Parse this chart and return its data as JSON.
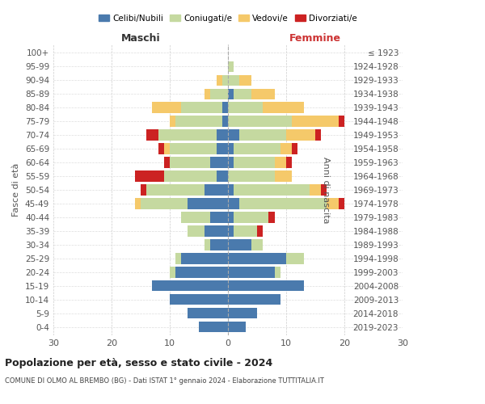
{
  "age_groups": [
    "0-4",
    "5-9",
    "10-14",
    "15-19",
    "20-24",
    "25-29",
    "30-34",
    "35-39",
    "40-44",
    "45-49",
    "50-54",
    "55-59",
    "60-64",
    "65-69",
    "70-74",
    "75-79",
    "80-84",
    "85-89",
    "90-94",
    "95-99",
    "100+"
  ],
  "birth_years": [
    "2019-2023",
    "2014-2018",
    "2009-2013",
    "2004-2008",
    "1999-2003",
    "1994-1998",
    "1989-1993",
    "1984-1988",
    "1979-1983",
    "1974-1978",
    "1969-1973",
    "1964-1968",
    "1959-1963",
    "1954-1958",
    "1949-1953",
    "1944-1948",
    "1939-1943",
    "1934-1938",
    "1929-1933",
    "1924-1928",
    "≤ 1923"
  ],
  "male": {
    "celibi": [
      5,
      7,
      10,
      13,
      9,
      8,
      3,
      4,
      3,
      7,
      4,
      2,
      3,
      2,
      2,
      1,
      1,
      0,
      0,
      0,
      0
    ],
    "coniugati": [
      0,
      0,
      0,
      0,
      1,
      1,
      1,
      3,
      5,
      8,
      10,
      9,
      7,
      8,
      10,
      8,
      7,
      3,
      1,
      0,
      0
    ],
    "vedovi": [
      0,
      0,
      0,
      0,
      0,
      0,
      0,
      0,
      0,
      1,
      0,
      0,
      0,
      1,
      0,
      1,
      5,
      1,
      1,
      0,
      0
    ],
    "divorziati": [
      0,
      0,
      0,
      0,
      0,
      0,
      0,
      0,
      0,
      0,
      1,
      5,
      1,
      1,
      2,
      0,
      0,
      0,
      0,
      0,
      0
    ]
  },
  "female": {
    "nubili": [
      3,
      5,
      9,
      13,
      8,
      10,
      4,
      1,
      1,
      2,
      1,
      0,
      1,
      1,
      2,
      0,
      0,
      1,
      0,
      0,
      0
    ],
    "coniugate": [
      0,
      0,
      0,
      0,
      1,
      3,
      2,
      4,
      6,
      15,
      13,
      8,
      7,
      8,
      8,
      11,
      6,
      3,
      2,
      1,
      0
    ],
    "vedove": [
      0,
      0,
      0,
      0,
      0,
      0,
      0,
      0,
      0,
      2,
      2,
      3,
      2,
      2,
      5,
      8,
      7,
      4,
      2,
      0,
      0
    ],
    "divorziate": [
      0,
      0,
      0,
      0,
      0,
      0,
      0,
      1,
      1,
      1,
      1,
      0,
      1,
      1,
      1,
      1,
      0,
      0,
      0,
      0,
      0
    ]
  },
  "colors": {
    "celibi": "#4a7aad",
    "coniugati": "#c5d9a0",
    "vedovi": "#f5c96a",
    "divorziati": "#cc2222"
  },
  "xlim": 30,
  "title": "Popolazione per età, sesso e stato civile - 2024",
  "subtitle": "COMUNE DI OLMO AL BREMBO (BG) - Dati ISTAT 1° gennaio 2024 - Elaborazione TUTTITALIA.IT",
  "ylabel_left": "Fasce di età",
  "ylabel_right": "Anni di nascita",
  "xlabel_left": "Maschi",
  "xlabel_right": "Femmine"
}
